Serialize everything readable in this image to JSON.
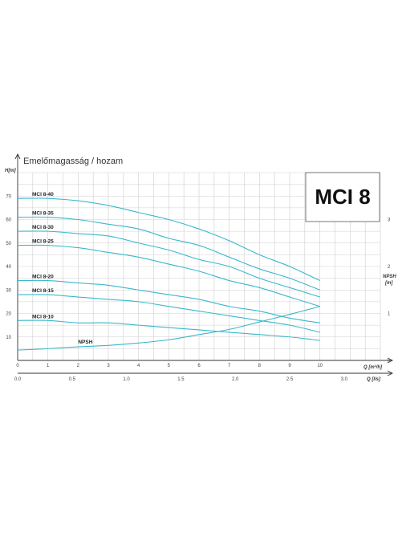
{
  "chart_data": {
    "type": "line",
    "title": "Emelőmagasság / hozam",
    "model": "MCI 8",
    "ylabel": "H[m]",
    "ylabel_right_1": "NPSH",
    "ylabel_right_2": "[m]",
    "xlabel_primary": "Q [m³/h]",
    "xlabel_secondary": "Q [l/s]",
    "xlim": [
      0,
      12
    ],
    "ylim": [
      0,
      80
    ],
    "y_ticks": [
      "10",
      "20",
      "30",
      "40",
      "50",
      "60",
      "70"
    ],
    "y_tick_values": [
      10,
      20,
      30,
      40,
      50,
      60,
      70
    ],
    "x_ticks": [
      "0",
      "1",
      "2",
      "3",
      "4",
      "5",
      "6",
      "7",
      "8",
      "9",
      "10"
    ],
    "x_tick_values": [
      0,
      1,
      2,
      3,
      4,
      5,
      6,
      7,
      8,
      9,
      10
    ],
    "x2_ticks": [
      "0.0",
      "0.5",
      "1.0",
      "1.5",
      "2.0",
      "2.5",
      "3.0"
    ],
    "x2_tick_values": [
      0,
      1.8,
      3.6,
      5.4,
      7.2,
      9.0,
      10.8
    ],
    "npsh_ticks": [
      "0",
      "1",
      "2",
      "3"
    ],
    "npsh_tick_values": [
      0,
      1,
      2,
      3
    ],
    "npsh_scale": 20,
    "grid": true,
    "x": [
      0,
      1,
      2,
      3,
      4,
      5,
      6,
      7,
      8,
      9,
      10
    ],
    "series": [
      {
        "name": "MCI 8-40",
        "values": [
          69,
          69,
          68,
          66,
          63,
          60,
          56,
          51,
          45,
          40,
          34
        ]
      },
      {
        "name": "MCI 8-35",
        "values": [
          61,
          61,
          60,
          58,
          56,
          52,
          49,
          44,
          39,
          35,
          30
        ]
      },
      {
        "name": "MCI 8-30",
        "values": [
          55,
          55,
          54,
          53,
          50,
          47,
          43,
          40,
          35,
          31,
          27
        ]
      },
      {
        "name": "MCI 8-25",
        "values": [
          49,
          49,
          48,
          46,
          44,
          41,
          38,
          34,
          31,
          27,
          23
        ]
      },
      {
        "name": "MCI 8-20",
        "values": [
          34,
          34,
          33,
          32,
          30,
          28,
          26,
          23,
          21,
          18,
          16
        ]
      },
      {
        "name": "MCI 8-15",
        "values": [
          28,
          28,
          27,
          26,
          25,
          23,
          21,
          19,
          17,
          15,
          12
        ]
      },
      {
        "name": "MCI 8-10",
        "values": [
          17,
          17,
          16,
          16,
          15,
          14,
          13,
          12,
          11,
          10,
          8.5
        ]
      },
      {
        "name": "NPSH",
        "values": [
          0.22,
          0.25,
          0.29,
          0.32,
          0.37,
          0.44,
          0.55,
          0.66,
          0.82,
          0.98,
          1.15
        ]
      }
    ],
    "colors": {
      "curve": "#39b8cc",
      "grid": "#cfcfcf",
      "axis": "#333333",
      "text": "#222222"
    }
  }
}
